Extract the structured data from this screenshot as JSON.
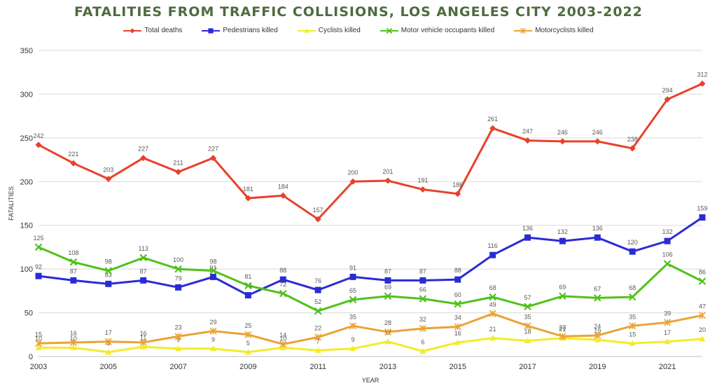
{
  "chart_data": {
    "type": "line",
    "title": "FATALITIES FROM TRAFFIC COLLISIONS, LOS ANGELES CITY 2003-2022",
    "xlabel": "YEAR",
    "ylabel": "FATALITIES",
    "ylim": [
      0,
      350
    ],
    "yticks": [
      0,
      50,
      100,
      150,
      200,
      250,
      300,
      350
    ],
    "x": [
      2003,
      2004,
      2005,
      2006,
      2007,
      2008,
      2009,
      2010,
      2011,
      2012,
      2013,
      2014,
      2015,
      2016,
      2017,
      2018,
      2019,
      2020,
      2021,
      2022
    ],
    "xtick_labels": [
      "2003",
      "2005",
      "2007",
      "2009",
      "2011",
      "2013",
      "2015",
      "2017",
      "2019",
      "2021"
    ],
    "grid": true,
    "legend_position": "top",
    "series": [
      {
        "name": "Total deaths",
        "color": "#e8412b",
        "marker": "diamond",
        "values": [
          242,
          221,
          203,
          227,
          211,
          227,
          181,
          184,
          157,
          200,
          201,
          191,
          186,
          261,
          247,
          246,
          246,
          238,
          294,
          312
        ]
      },
      {
        "name": "Pedestrians killed",
        "color": "#2b2bd6",
        "marker": "square",
        "values": [
          92,
          87,
          83,
          87,
          79,
          91,
          70,
          88,
          76,
          91,
          87,
          87,
          88,
          116,
          136,
          132,
          136,
          120,
          132,
          159
        ]
      },
      {
        "name": "Cyclists killed",
        "color": "#f2ec29",
        "marker": "triangle",
        "values": [
          10,
          10,
          5,
          11,
          9,
          9,
          5,
          10,
          7,
          9,
          17,
          6,
          16,
          21,
          18,
          21,
          19,
          15,
          17,
          20
        ]
      },
      {
        "name": "Motor vehicle occupants killed",
        "color": "#4fc21c",
        "marker": "x",
        "values": [
          125,
          108,
          98,
          113,
          100,
          98,
          81,
          72,
          52,
          65,
          69,
          66,
          60,
          68,
          57,
          69,
          67,
          68,
          106,
          86
        ]
      },
      {
        "name": "Motorcyclists killed",
        "color": "#eaa336",
        "marker": "star",
        "values": [
          15,
          16,
          17,
          16,
          23,
          29,
          25,
          14,
          22,
          35,
          28,
          32,
          34,
          49,
          35,
          23,
          24,
          35,
          39,
          47
        ]
      }
    ]
  }
}
